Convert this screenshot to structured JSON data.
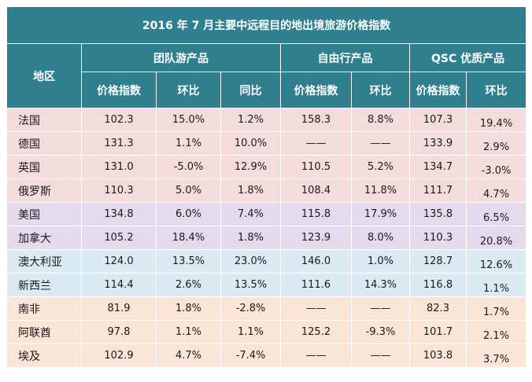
{
  "title": "2016 年 7 月主要中远程目的地出境旅游价格指数",
  "headers": {
    "region": "地区",
    "group": "团队游产品",
    "free": "自由行产品",
    "qsc": "QSC 优质产品",
    "price_index": "价格指数",
    "mom": "环比",
    "yoy": "同比"
  },
  "rows": [
    {
      "region": "法国",
      "g_idx": "102.3",
      "g_mom": "15.0%",
      "g_yoy": "1.2%",
      "f_idx": "158.3",
      "f_mom": "8.8%",
      "q_idx": "107.3",
      "q_mom": "19.4%"
    },
    {
      "region": "德国",
      "g_idx": "131.3",
      "g_mom": "1.1%",
      "g_yoy": "10.0%",
      "f_idx": "——",
      "f_mom": "——",
      "q_idx": "133.9",
      "q_mom": "2.9%"
    },
    {
      "region": "英国",
      "g_idx": "131.0",
      "g_mom": "-5.0%",
      "g_yoy": "12.9%",
      "f_idx": "110.5",
      "f_mom": "5.2%",
      "q_idx": "134.7",
      "q_mom": "-3.0%"
    },
    {
      "region": "俄罗斯",
      "g_idx": "110.3",
      "g_mom": "5.0%",
      "g_yoy": "1.8%",
      "f_idx": "108.4",
      "f_mom": "11.8%",
      "q_idx": "111.7",
      "q_mom": "4.7%"
    },
    {
      "region": "美国",
      "g_idx": "134.8",
      "g_mom": "6.0%",
      "g_yoy": "7.4%",
      "f_idx": "115.8",
      "f_mom": "17.9%",
      "q_idx": "135.8",
      "q_mom": "6.5%"
    },
    {
      "region": "加拿大",
      "g_idx": "105.2",
      "g_mom": "18.4%",
      "g_yoy": "1.8%",
      "f_idx": "123.9",
      "f_mom": "8.0%",
      "q_idx": "110.3",
      "q_mom": "20.8%"
    },
    {
      "region": "澳大利亚",
      "g_idx": "124.0",
      "g_mom": "13.5%",
      "g_yoy": "23.0%",
      "f_idx": "146.0",
      "f_mom": "1.0%",
      "q_idx": "128.7",
      "q_mom": "12.6%"
    },
    {
      "region": "新西兰",
      "g_idx": "114.4",
      "g_mom": "2.6%",
      "g_yoy": "13.5%",
      "f_idx": "111.6",
      "f_mom": "14.3%",
      "q_idx": "116.8",
      "q_mom": "1.1%"
    },
    {
      "region": "南非",
      "g_idx": "81.9",
      "g_mom": "1.8%",
      "g_yoy": "-2.8%",
      "f_idx": "——",
      "f_mom": "——",
      "q_idx": "82.3",
      "q_mom": "1.7%"
    },
    {
      "region": "阿联酋",
      "g_idx": "97.8",
      "g_mom": "1.1%",
      "g_yoy": "1.1%",
      "f_idx": "125.2",
      "f_mom": "-9.3%",
      "q_idx": "101.7",
      "q_mom": "2.1%"
    },
    {
      "region": "埃及",
      "g_idx": "102.9",
      "g_mom": "4.7%",
      "g_yoy": "-7.4%",
      "f_idx": "——",
      "f_mom": "——",
      "q_idx": "103.8",
      "q_mom": "3.7%"
    }
  ]
}
